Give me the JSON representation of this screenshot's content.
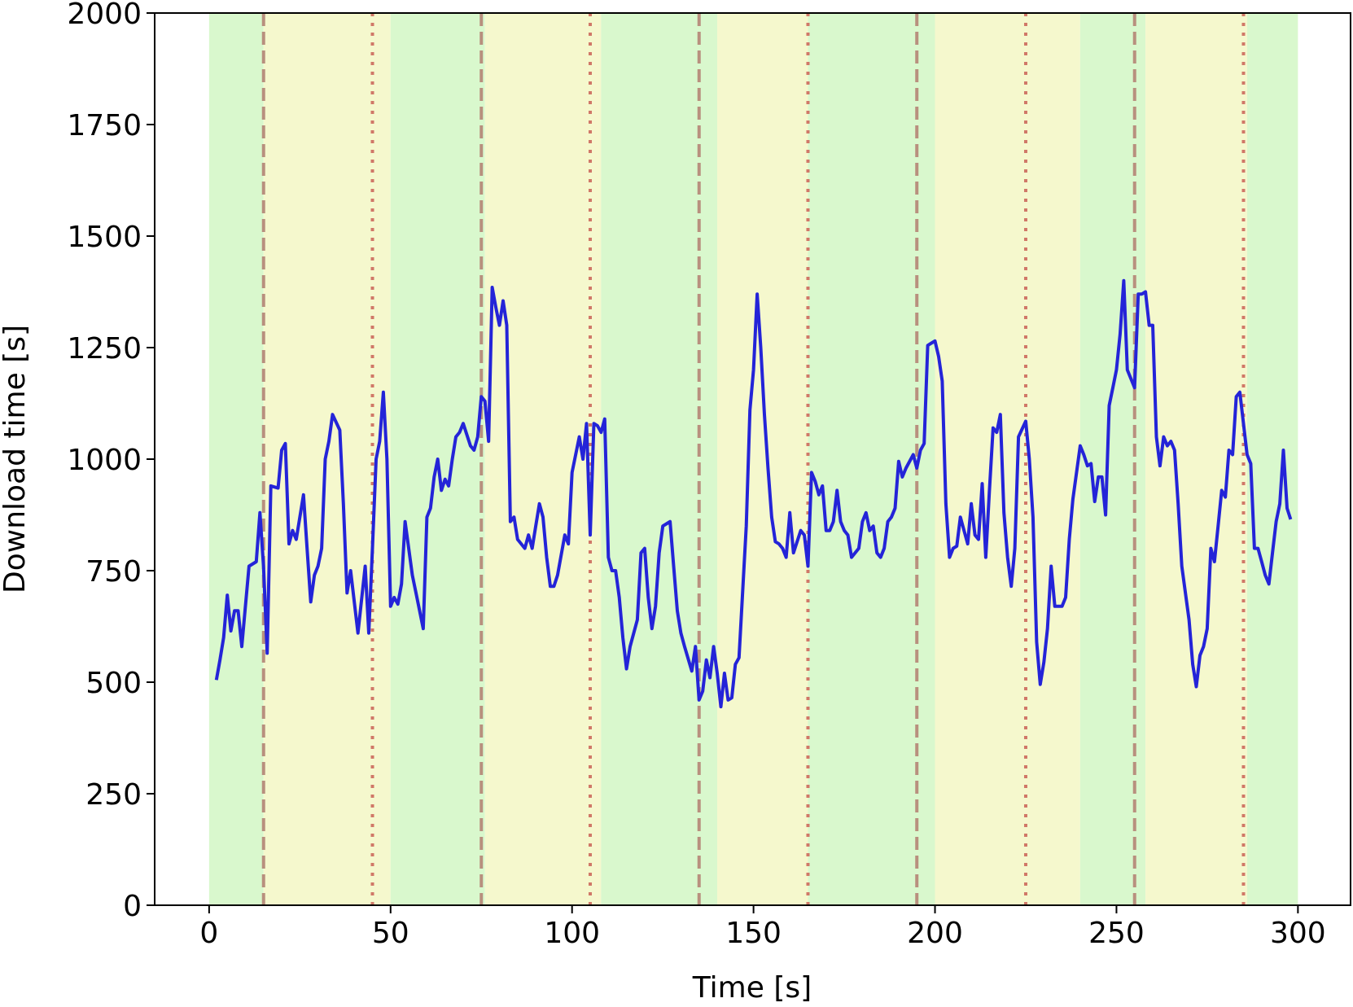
{
  "chart_data": {
    "type": "line",
    "xlabel": "Time [s]",
    "ylabel": "Download time [s]",
    "xlim": [
      -15,
      314.5
    ],
    "ylim": [
      0,
      2000
    ],
    "xticks": [
      0,
      50,
      100,
      150,
      200,
      250,
      300
    ],
    "yticks": [
      0,
      250,
      500,
      750,
      1000,
      1250,
      1500,
      1750,
      2000
    ],
    "color": "#2424d8",
    "regions": [
      {
        "start": 0,
        "end": 15,
        "color": "#d9f8cd"
      },
      {
        "start": 15,
        "end": 50,
        "color": "#f5f8cd"
      },
      {
        "start": 50,
        "end": 76,
        "color": "#d9f8cd"
      },
      {
        "start": 76,
        "end": 108,
        "color": "#f5f8cd"
      },
      {
        "start": 108,
        "end": 140,
        "color": "#d9f8cd"
      },
      {
        "start": 140,
        "end": 165,
        "color": "#f5f8cd"
      },
      {
        "start": 165,
        "end": 200,
        "color": "#d9f8cd"
      },
      {
        "start": 200,
        "end": 240,
        "color": "#f5f8cd"
      },
      {
        "start": 240,
        "end": 258,
        "color": "#d9f8cd"
      },
      {
        "start": 258,
        "end": 286,
        "color": "#f5f8cd"
      },
      {
        "start": 286,
        "end": 300,
        "color": "#d9f8cd"
      }
    ],
    "dashed_lines": [
      15,
      75,
      135,
      195,
      255
    ],
    "dashed_color": "#b8907e",
    "dotted_lines": [
      45,
      105,
      165,
      225,
      285
    ],
    "dotted_color": "#d07868",
    "x": [
      2,
      3,
      4,
      5,
      6,
      7,
      8,
      9,
      11,
      13,
      14,
      15,
      16,
      17,
      19,
      20,
      21,
      22,
      23,
      24,
      26,
      27,
      28,
      29,
      30,
      31,
      32,
      33,
      34,
      36,
      37,
      38,
      39,
      41,
      43,
      44,
      45,
      46,
      47,
      48,
      49,
      50,
      51,
      52,
      53,
      54,
      56,
      57,
      59,
      60,
      61,
      62,
      63,
      64,
      65,
      66,
      67,
      68,
      69,
      70,
      72,
      73,
      74,
      75,
      76,
      77,
      78,
      79,
      80,
      81,
      82,
      83,
      84,
      85,
      87,
      88,
      89,
      90,
      91,
      92,
      93,
      94,
      95,
      96,
      98,
      99,
      100,
      102,
      103,
      104,
      105,
      106,
      107,
      108,
      109,
      110,
      111,
      112,
      113,
      114,
      115,
      116,
      118,
      119,
      120,
      121,
      122,
      123,
      124,
      125,
      126,
      127,
      128,
      129,
      130,
      131,
      133,
      134,
      135,
      136,
      137,
      138,
      139,
      140,
      141,
      142,
      143,
      144,
      145,
      146,
      148,
      149,
      150,
      151,
      152,
      153,
      154,
      155,
      156,
      157,
      158,
      159,
      160,
      161,
      163,
      164,
      165,
      166,
      167,
      168,
      169,
      170,
      171,
      172,
      173,
      174,
      175,
      176,
      177,
      179,
      180,
      181,
      182,
      183,
      184,
      185,
      186,
      187,
      188,
      189,
      190,
      191,
      192,
      194,
      195,
      196,
      197,
      198,
      199,
      200,
      201,
      202,
      203,
      204,
      205,
      206,
      207,
      209,
      210,
      211,
      212,
      213,
      214,
      215,
      216,
      217,
      218,
      219,
      220,
      221,
      222,
      223,
      225,
      226,
      227,
      228,
      229,
      230,
      231,
      232,
      233,
      234,
      235,
      236,
      237,
      238,
      240,
      241,
      242,
      243,
      244,
      245,
      246,
      247,
      248,
      249,
      250,
      251,
      252,
      253,
      255,
      256,
      257,
      258,
      259,
      260,
      261,
      262,
      263,
      264,
      265,
      266,
      267,
      268,
      270,
      271,
      272,
      273,
      274,
      275,
      276,
      277,
      278,
      279,
      280,
      281,
      282,
      283,
      284,
      286,
      287,
      288,
      289,
      290,
      291,
      292,
      293,
      294,
      295,
      296,
      297,
      298
    ],
    "values": [
      505,
      550,
      600,
      695,
      615,
      660,
      660,
      580,
      760,
      770,
      880,
      760,
      565,
      940,
      935,
      1020,
      1035,
      810,
      840,
      820,
      920,
      800,
      680,
      740,
      760,
      800,
      1000,
      1040,
      1100,
      1065,
      900,
      700,
      750,
      610,
      760,
      610,
      800,
      1000,
      1040,
      1150,
      1000,
      670,
      690,
      675,
      720,
      860,
      740,
      700,
      620,
      870,
      890,
      960,
      1000,
      930,
      955,
      940,
      1000,
      1050,
      1060,
      1080,
      1030,
      1020,
      1050,
      1140,
      1130,
      1040,
      1385,
      1340,
      1300,
      1355,
      1300,
      860,
      870,
      820,
      800,
      830,
      800,
      850,
      900,
      870,
      780,
      715,
      715,
      740,
      830,
      810,
      970,
      1050,
      1000,
      1080,
      830,
      1080,
      1075,
      1060,
      1090,
      780,
      750,
      750,
      690,
      600,
      530,
      580,
      640,
      790,
      800,
      690,
      620,
      670,
      790,
      850,
      855,
      860,
      760,
      660,
      610,
      580,
      525,
      580,
      460,
      480,
      550,
      510,
      580,
      520,
      445,
      520,
      460,
      465,
      540,
      555,
      850,
      1110,
      1200,
      1370,
      1250,
      1100,
      980,
      870,
      815,
      810,
      800,
      780,
      880,
      790,
      840,
      830,
      760,
      970,
      950,
      920,
      940,
      840,
      840,
      860,
      930,
      860,
      840,
      830,
      780,
      800,
      860,
      880,
      840,
      850,
      790,
      780,
      800,
      860,
      870,
      890,
      995,
      960,
      980,
      1010,
      980,
      1020,
      1035,
      1255,
      1260,
      1265,
      1230,
      1175,
      900,
      780,
      800,
      805,
      870,
      810,
      900,
      830,
      820,
      945,
      780,
      930,
      1070,
      1060,
      1100,
      880,
      780,
      715,
      800,
      1050,
      1085,
      1000,
      870,
      590,
      495,
      545,
      620,
      760,
      670,
      670,
      670,
      690,
      820,
      910,
      1030,
      1010,
      985,
      990,
      905,
      960,
      960,
      875,
      1120,
      1160,
      1200,
      1280,
      1400,
      1200,
      1160,
      1370,
      1370,
      1375,
      1300,
      1300,
      1050,
      985,
      1050,
      1030,
      1040,
      1020,
      900,
      760,
      640,
      540,
      490,
      560,
      580,
      620,
      800,
      770,
      850,
      930,
      915,
      1020,
      1010,
      1140,
      1150,
      1010,
      990,
      800,
      800,
      770,
      740,
      720,
      790,
      860,
      900,
      1020,
      890,
      865
    ]
  }
}
